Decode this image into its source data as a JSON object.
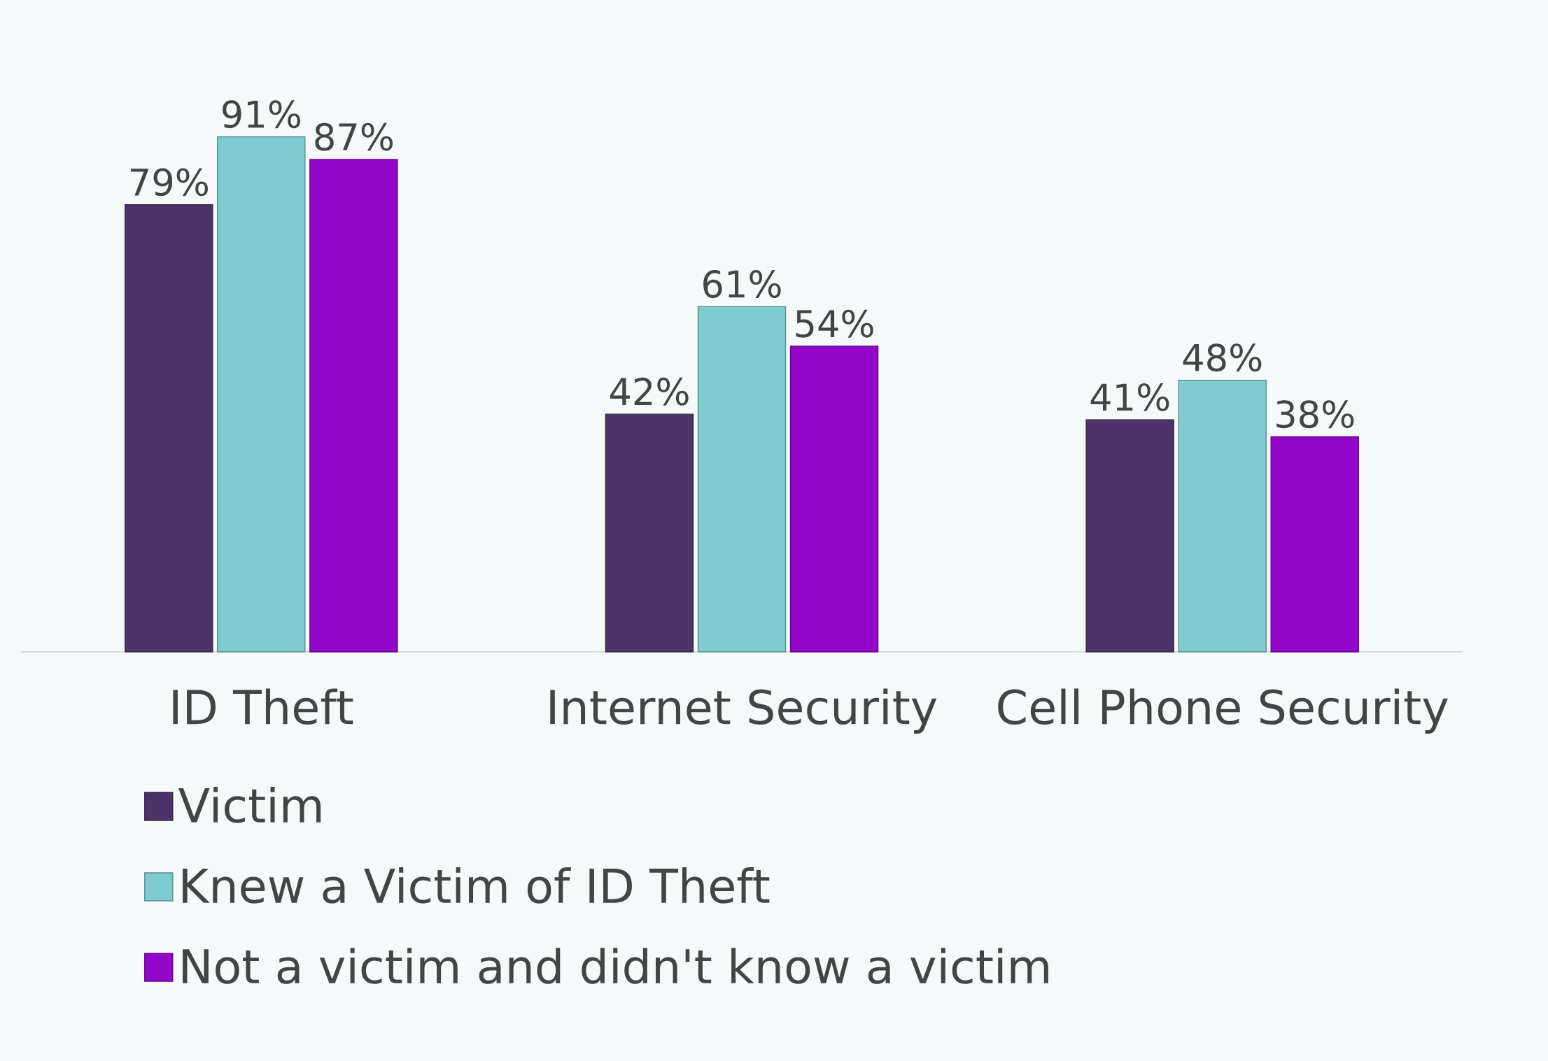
{
  "chart_data": {
    "type": "bar",
    "categories": [
      "ID Theft",
      "Internet Security",
      "Cell Phone Security"
    ],
    "series": [
      {
        "name": "Victim",
        "color": "#4b3568",
        "values": [
          79,
          42,
          41
        ],
        "value_labels": [
          "79%",
          "42%",
          "41%"
        ]
      },
      {
        "name": "Knew a Victim of ID Theft",
        "color": "#7ecbd0",
        "values": [
          91,
          61,
          48
        ],
        "value_labels": [
          "91%",
          "61%",
          "48%"
        ]
      },
      {
        "name": "Not a victim and didn't know a victim",
        "color": "#9305c8",
        "values": [
          87,
          54,
          38
        ],
        "value_labels": [
          "87%",
          "54%",
          "38%"
        ]
      }
    ],
    "legend": "bottom"
  }
}
